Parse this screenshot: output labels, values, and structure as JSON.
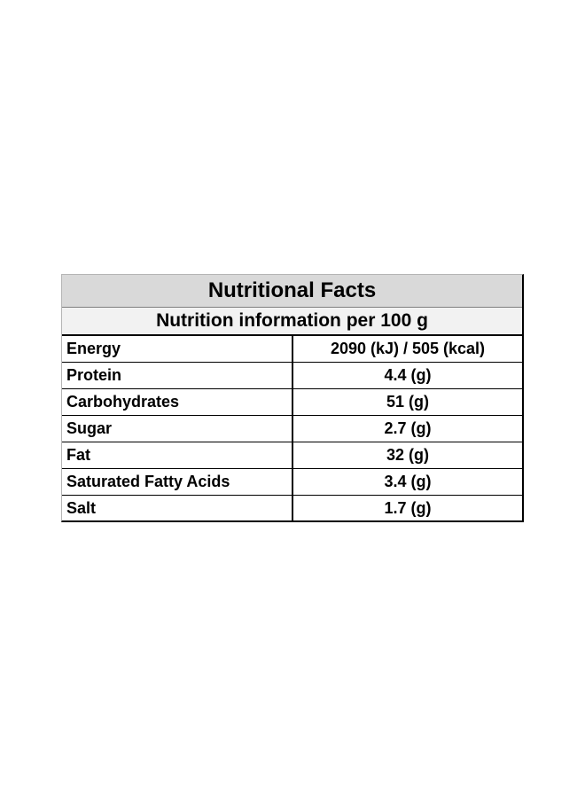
{
  "table": {
    "title": "Nutritional Facts",
    "subtitle": "Nutrition information per 100 g",
    "rows": [
      {
        "label": "Energy",
        "value": "2090 (kJ) / 505 (kcal)"
      },
      {
        "label": "Protein",
        "value": "4.4 (g)"
      },
      {
        "label": "Carbohydrates",
        "value": "51 (g)"
      },
      {
        "label": "Sugar",
        "value": "2.7 (g)"
      },
      {
        "label": "Fat",
        "value": "32 (g)"
      },
      {
        "label": "Saturated Fatty Acids",
        "value": "3.4 (g)"
      },
      {
        "label": "Salt",
        "value": "1.7 (g)"
      }
    ]
  },
  "colors": {
    "title_background": "#d9d9d9",
    "subtitle_background": "#f2f2f2",
    "border": "#000000",
    "text": "#000000"
  }
}
